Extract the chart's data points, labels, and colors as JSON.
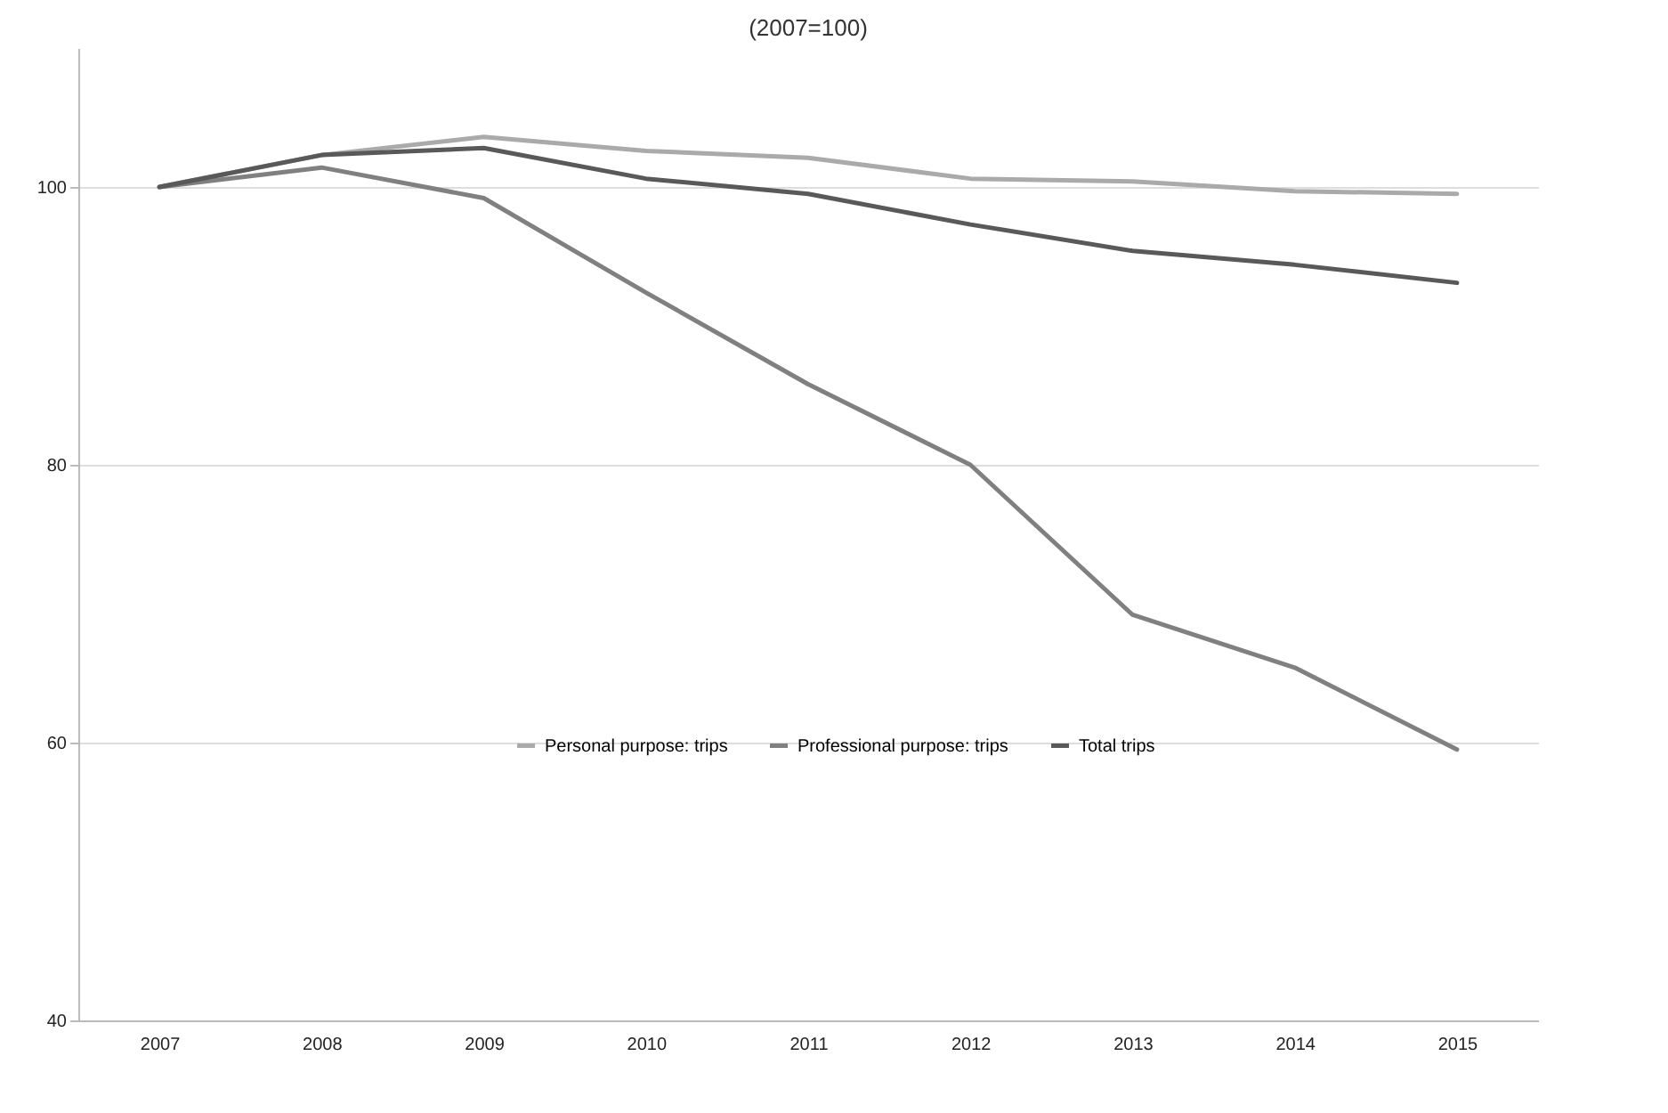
{
  "chart_data": {
    "type": "line",
    "title": "(2007=100)",
    "categories": [
      "2007",
      "2008",
      "2009",
      "2010",
      "2011",
      "2012",
      "2013",
      "2014",
      "2015"
    ],
    "series": [
      {
        "name": "Personal purpose: trips",
        "color": "#aaaaaa",
        "values": [
          100,
          102.3,
          103.6,
          102.6,
          102.1,
          100.6,
          100.4,
          99.7,
          99.5
        ]
      },
      {
        "name": "Professional purpose: trips",
        "color": "#808080",
        "values": [
          100,
          101.4,
          99.2,
          92.4,
          85.8,
          80,
          69.2,
          65.4,
          59.5
        ]
      },
      {
        "name": "Total trips",
        "color": "#595959",
        "values": [
          100,
          102.3,
          102.8,
          100.6,
          99.5,
          97.3,
          95.4,
          94.4,
          93.1
        ]
      }
    ],
    "ylim": [
      40,
      110
    ],
    "yticks": [
      40,
      60,
      80,
      100
    ],
    "grid": "y",
    "legend": "bottom",
    "marker": "none",
    "line_style": "solid"
  }
}
